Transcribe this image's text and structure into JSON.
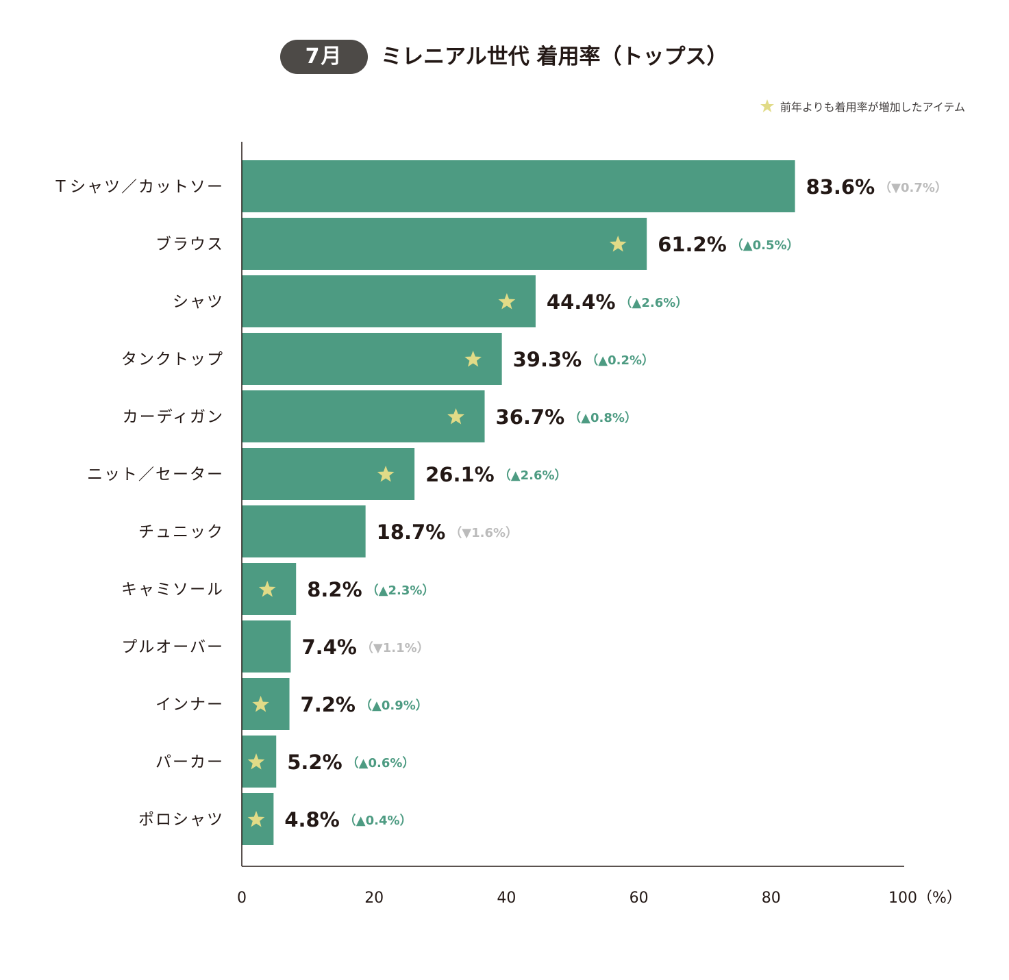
{
  "header": {
    "month": "7月",
    "title": "ミレニアル世代 着用率（トップス）"
  },
  "legend": {
    "label": "前年よりも着用率が増加したアイテム",
    "star_color": "#e1db87"
  },
  "colors": {
    "bar": "#4d9b82",
    "up": "#4d9b82",
    "down": "#bbbbbb",
    "value_text": "#231815"
  },
  "chart_data": {
    "type": "bar",
    "orientation": "horizontal",
    "categories": [
      "Ｔシャツ／カットソー",
      "ブラウス",
      "シャツ",
      "タンクトップ",
      "カーディガン",
      "ニット／セーター",
      "チュニック",
      "キャミソール",
      "プルオーバー",
      "インナー",
      "パーカー",
      "ポロシャツ"
    ],
    "values": [
      83.6,
      61.2,
      44.4,
      39.3,
      36.7,
      26.1,
      18.7,
      8.2,
      7.4,
      7.2,
      5.2,
      4.8
    ],
    "value_labels": [
      "83.6%",
      "61.2%",
      "44.4%",
      "39.3%",
      "36.7%",
      "26.1%",
      "18.7%",
      "8.2%",
      "7.4%",
      "7.2%",
      "5.2%",
      "4.8%"
    ],
    "changes": [
      "（▼0.7%）",
      "（▲0.5%）",
      "（▲2.6%）",
      "（▲0.2%）",
      "（▲0.8%）",
      "（▲2.6%）",
      "（▼1.6%）",
      "（▲2.3%）",
      "（▼1.1%）",
      "（▲0.9%）",
      "（▲0.6%）",
      "（▲0.4%）"
    ],
    "change_direction": [
      "down",
      "up",
      "up",
      "up",
      "up",
      "up",
      "down",
      "up",
      "down",
      "up",
      "up",
      "up"
    ],
    "increased": [
      false,
      true,
      true,
      true,
      true,
      true,
      false,
      true,
      false,
      true,
      true,
      true
    ],
    "xlim": [
      0,
      100
    ],
    "xticks": [
      "0",
      "20",
      "40",
      "60",
      "80",
      "100（%）"
    ],
    "tick_values": [
      0,
      20,
      40,
      60,
      80,
      100
    ],
    "grid": false
  }
}
